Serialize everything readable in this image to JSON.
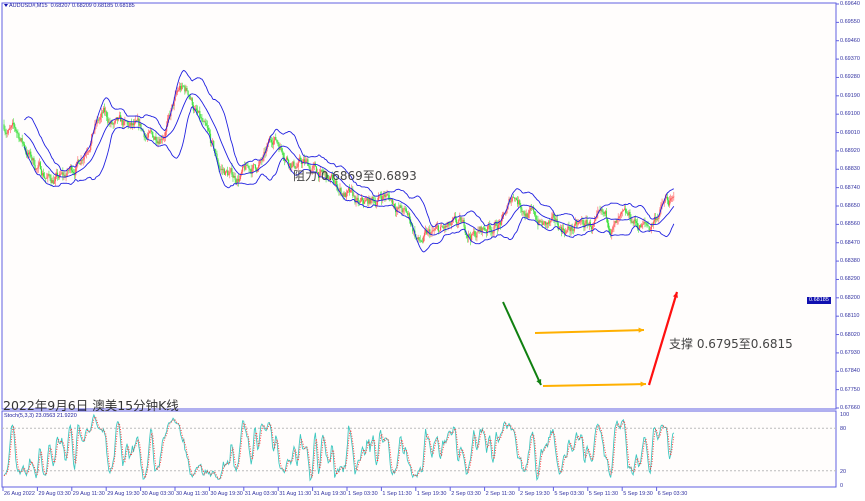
{
  "header": {
    "symbol": "AUDUSD#,M15",
    "ohlc": "0.68207 0.68209 0.68185 0.68185"
  },
  "price_axis": {
    "labels": [
      "0.69640",
      "0.69550",
      "0.69460",
      "0.69370",
      "0.69280",
      "0.69190",
      "0.69100",
      "0.69010",
      "0.68920",
      "0.68830",
      "0.68740",
      "0.68650",
      "0.68560",
      "0.68470",
      "0.68380",
      "0.68290",
      "0.68200",
      "0.68110",
      "0.68020",
      "0.67930",
      "0.67840",
      "0.67750",
      "0.67660"
    ],
    "max": 0.6964,
    "min": 0.6766,
    "current": "0.68185"
  },
  "stoch": {
    "label": "Stoch(5,3,3) 23.0563 21.9220",
    "levels": [
      "100",
      "80",
      "20",
      "0"
    ],
    "k": 23.0563,
    "d": 21.922
  },
  "time_axis": [
    "26 Aug 2022",
    "29 Aug 03:30",
    "29 Aug 11:30",
    "29 Aug 19:30",
    "30 Aug 03:30",
    "30 Aug 11:30",
    "30 Aug 19:30",
    "31 Aug 03:30",
    "31 Aug 11:30",
    "31 Aug 19:30",
    "1 Sep 03:30",
    "1 Sep 11:30",
    "1 Sep 19:30",
    "2 Sep 03:30",
    "2 Sep 11:30",
    "2 Sep 19:30",
    "5 Sep 03:30",
    "5 Sep 11:30",
    "5 Sep 19:30",
    "6 Sep 03:30"
  ],
  "annotations": {
    "resistance": "阻力 0.6869至0.6893",
    "support": "支撑 0.6795至0.6815",
    "caption": "2022年9月6日 澳美15分钟K线"
  },
  "colors": {
    "up": "#ff6060",
    "down": "#40e040",
    "bands": "#2020e0",
    "stoch_k": "#40c8c0",
    "stoch_d": "#ff3030",
    "arrow_orange": "#ffb000",
    "arrow_green": "#108010",
    "arrow_red": "#ff1010"
  },
  "price_path": [
    [
      0,
      0.6905
    ],
    [
      14,
      0.6899
    ],
    [
      28,
      0.6886
    ],
    [
      42,
      0.6879
    ],
    [
      56,
      0.6878
    ],
    [
      70,
      0.6887
    ],
    [
      84,
      0.6905
    ],
    [
      93,
      0.6909
    ],
    [
      103,
      0.6903
    ],
    [
      121,
      0.6901
    ],
    [
      140,
      0.6897
    ],
    [
      154,
      0.6908
    ],
    [
      164,
      0.6921
    ],
    [
      173,
      0.692
    ],
    [
      187,
      0.6901
    ],
    [
      201,
      0.6883
    ],
    [
      215,
      0.6879
    ],
    [
      229,
      0.6882
    ],
    [
      243,
      0.6887
    ],
    [
      252,
      0.6899
    ],
    [
      262,
      0.6893
    ],
    [
      271,
      0.6887
    ],
    [
      280,
      0.6886
    ],
    [
      294,
      0.6881
    ],
    [
      308,
      0.6875
    ],
    [
      322,
      0.687
    ],
    [
      332,
      0.6863
    ],
    [
      346,
      0.6867
    ],
    [
      355,
      0.6871
    ],
    [
      369,
      0.6865
    ],
    [
      379,
      0.6858
    ],
    [
      388,
      0.6847
    ],
    [
      397,
      0.6849
    ],
    [
      411,
      0.6852
    ],
    [
      425,
      0.6853
    ],
    [
      439,
      0.6851
    ],
    [
      453,
      0.6855
    ],
    [
      467,
      0.6858
    ],
    [
      477,
      0.6871
    ],
    [
      486,
      0.6865
    ],
    [
      495,
      0.686
    ],
    [
      505,
      0.6855
    ],
    [
      519,
      0.6854
    ],
    [
      533,
      0.6854
    ],
    [
      547,
      0.6855
    ],
    [
      561,
      0.6855
    ],
    [
      575,
      0.6855
    ],
    [
      589,
      0.6856
    ],
    [
      603,
      0.6854
    ],
    [
      612,
      0.6863
    ],
    [
      619,
      0.6867
    ],
    [
      626,
      0.6865
    ]
  ]
}
